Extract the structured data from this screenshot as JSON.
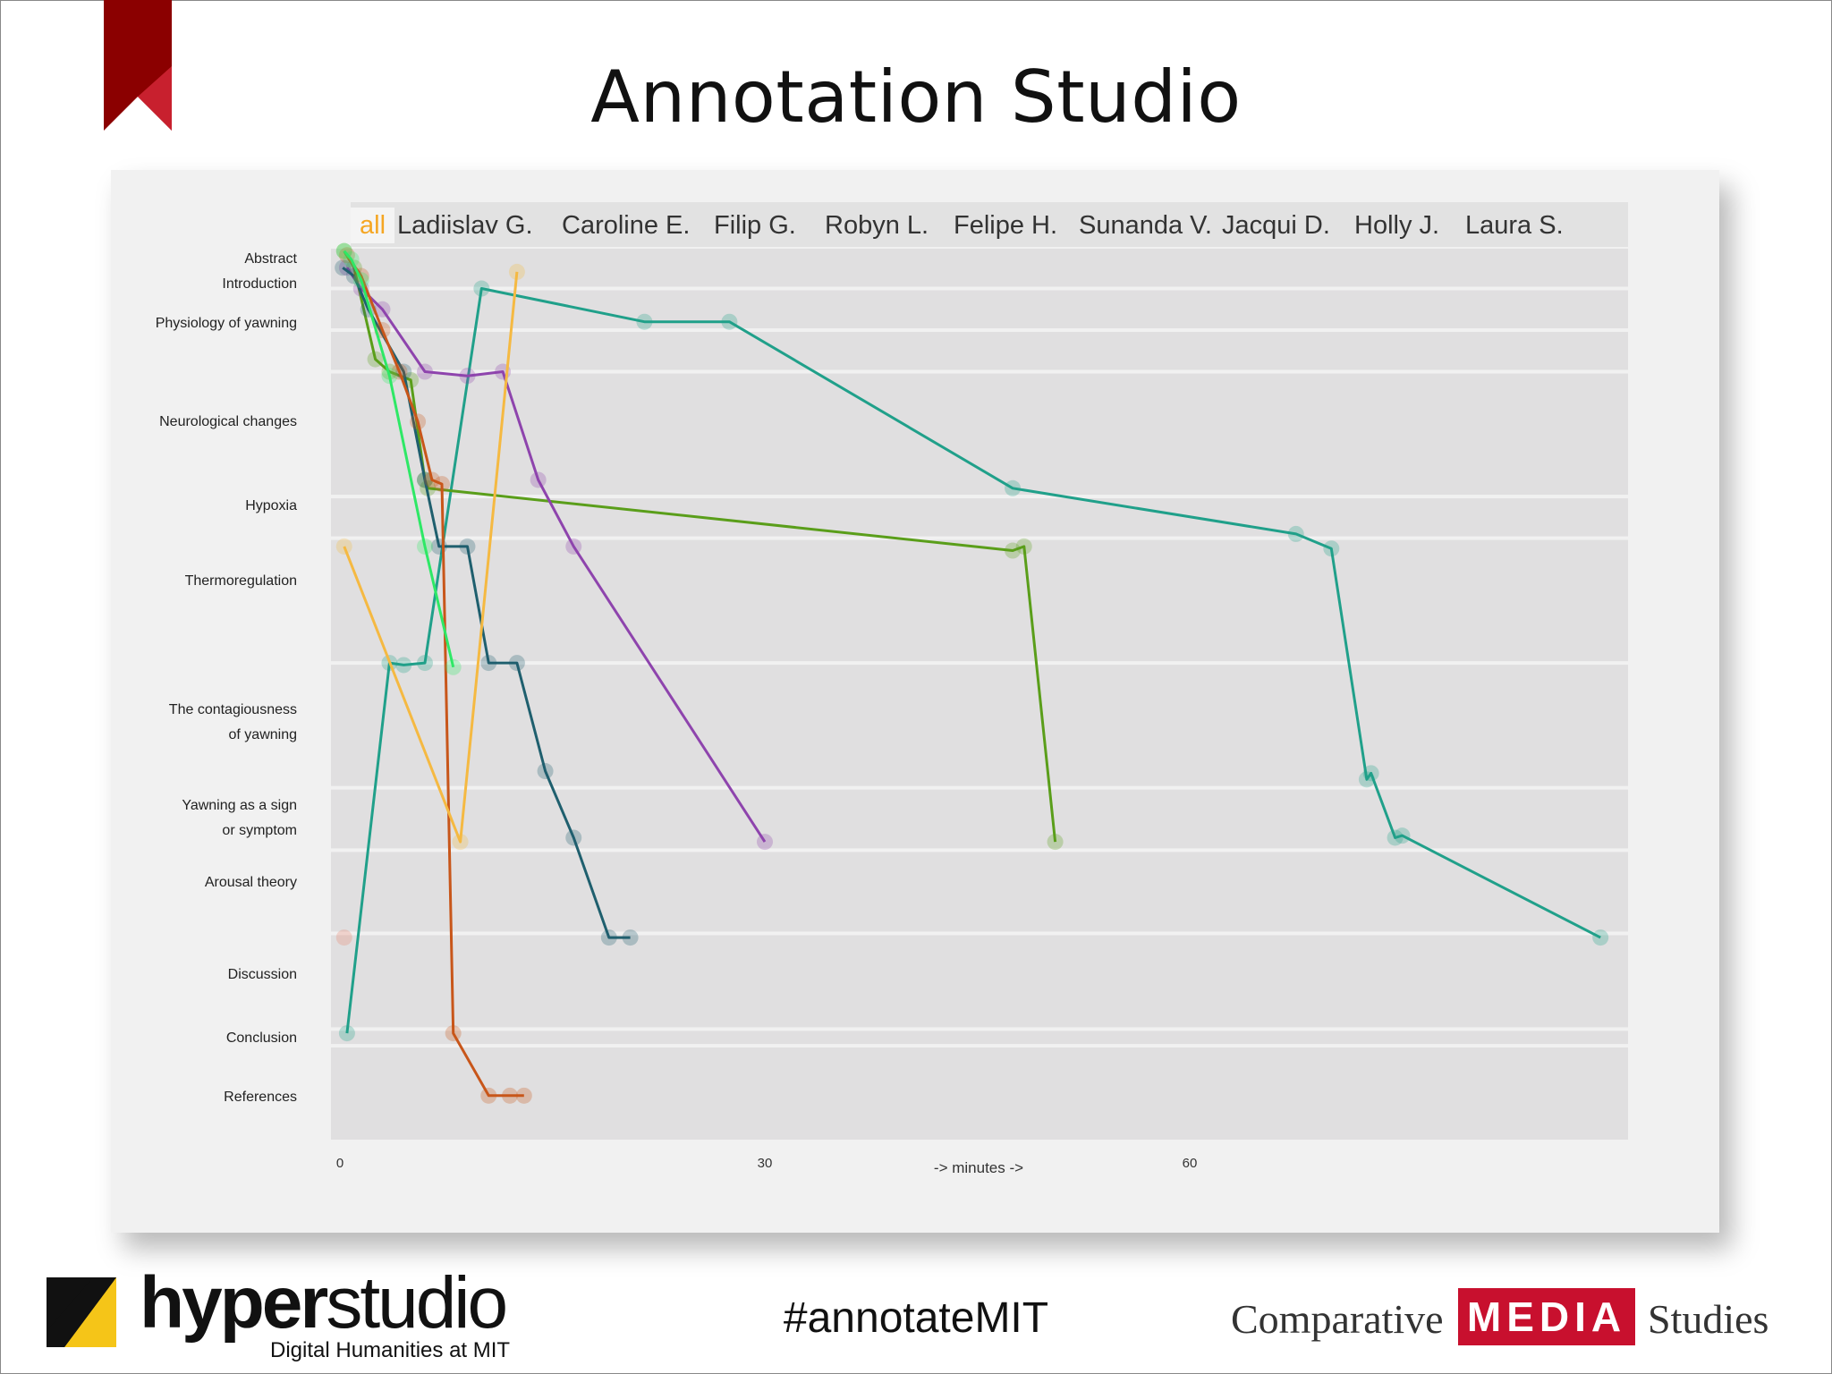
{
  "slide": {
    "title": "Annotation Studio",
    "hashtag": "#annotateMIT"
  },
  "footer": {
    "hyperstudio_bold": "hyper",
    "hyperstudio_light": "studio",
    "hyperstudio_sub": "Digital Humanities at MIT",
    "cms_left": "Comparative",
    "cms_media": "MEDIA",
    "cms_right": "Studies"
  },
  "colors": {
    "ribbon": "#8b0000",
    "ribbon_accent": "#c8202e",
    "tab_active": "#f5a623",
    "row_bg": "#e0dfe0"
  },
  "chart_data": {
    "type": "line",
    "title": "",
    "xlabel": "-> minutes ->",
    "ylabel": "",
    "x_range": [
      0,
      90
    ],
    "x_ticks": [
      0,
      30,
      60
    ],
    "tabs": [
      "all",
      "Ladiislav  G.",
      "Caroline E.",
      "Filip G.",
      "Robyn L.",
      "Felipe H.",
      "Sunanda V.",
      "Jacqui D.",
      "Holly J.",
      "Laura  S."
    ],
    "active_tab": "all",
    "sections": [
      {
        "label": "Abstract",
        "start": 0,
        "end": 1
      },
      {
        "label": "Introduction",
        "start": 1,
        "end": 2
      },
      {
        "label": "Physiology of yawning",
        "start": 2,
        "end": 3
      },
      {
        "label": "Neurological changes",
        "start": 3,
        "end": 6
      },
      {
        "label": "Hypoxia",
        "start": 6,
        "end": 7
      },
      {
        "label": "Thermoregulation",
        "start": 7,
        "end": 10
      },
      {
        "label": "The contagiousness of yawning",
        "start": 10,
        "end": 13
      },
      {
        "label": "Yawning as a sign or symptom",
        "start": 13,
        "end": 14.5
      },
      {
        "label": "Arousal theory",
        "start": 14.5,
        "end": 16.5
      },
      {
        "label": "Discussion",
        "start": 16.5,
        "end": 18.8
      },
      {
        "label": "Conclusion",
        "start": 18.8,
        "end": 19.2
      },
      {
        "label": "References",
        "start": 19.2,
        "end": 21.5
      }
    ],
    "y_range": [
      0,
      21.5
    ],
    "series": [
      {
        "name": "teal",
        "color": "#20a08a",
        "points": [
          [
            0.5,
            18.9
          ],
          [
            3.5,
            10.0
          ],
          [
            4.5,
            10.05
          ],
          [
            6,
            10.0
          ],
          [
            10,
            1.0
          ],
          [
            21.5,
            1.8
          ],
          [
            27.5,
            1.8
          ],
          [
            47.5,
            5.8
          ],
          [
            67.5,
            6.9
          ],
          [
            70,
            7.25
          ],
          [
            72.5,
            12.8
          ],
          [
            72.8,
            12.65
          ],
          [
            74.5,
            14.2
          ],
          [
            75,
            14.15
          ],
          [
            89,
            16.6
          ]
        ]
      },
      {
        "name": "olive-green",
        "color": "#5a9e1a",
        "points": [
          [
            0.3,
            0.1
          ],
          [
            1,
            0.5
          ],
          [
            2.5,
            2.7
          ],
          [
            3.5,
            3.0
          ],
          [
            5,
            3.2
          ],
          [
            6,
            5.6
          ],
          [
            6.2,
            5.8
          ],
          [
            47.5,
            7.3
          ],
          [
            48.3,
            7.2
          ],
          [
            50.5,
            14.3
          ]
        ]
      },
      {
        "name": "purple",
        "color": "#8e44ad",
        "points": [
          [
            0.5,
            0.5
          ],
          [
            1.5,
            1.0
          ],
          [
            3,
            1.5
          ],
          [
            6,
            3.0
          ],
          [
            9,
            3.1
          ],
          [
            11.5,
            3.0
          ],
          [
            14,
            5.6
          ],
          [
            16.5,
            7.2
          ],
          [
            30,
            14.3
          ]
        ]
      },
      {
        "name": "dark-teal",
        "color": "#1f5f6e",
        "points": [
          [
            0.2,
            0.5
          ],
          [
            1,
            0.7
          ],
          [
            2,
            1.5
          ],
          [
            4.5,
            3.0
          ],
          [
            6,
            5.6
          ],
          [
            7,
            7.2
          ],
          [
            9,
            7.2
          ],
          [
            10.5,
            10.0
          ],
          [
            12.5,
            10.0
          ],
          [
            14.5,
            12.6
          ],
          [
            16.5,
            14.2
          ],
          [
            19,
            16.6
          ],
          [
            20.5,
            16.6
          ]
        ]
      },
      {
        "name": "orange-brown",
        "color": "#c8561a",
        "points": [
          [
            0.5,
            0.2
          ],
          [
            1.5,
            0.7
          ],
          [
            3,
            2.0
          ],
          [
            4.2,
            3.0
          ],
          [
            5.5,
            4.2
          ],
          [
            6.5,
            5.6
          ],
          [
            7.2,
            5.7
          ],
          [
            8,
            18.9
          ],
          [
            10.5,
            20.4
          ],
          [
            12,
            20.4
          ],
          [
            13,
            20.4
          ]
        ]
      },
      {
        "name": "bright-green",
        "color": "#2ee866",
        "points": [
          [
            0.3,
            0.1
          ],
          [
            0.8,
            0.3
          ],
          [
            1.5,
            0.8
          ],
          [
            3.5,
            3.1
          ],
          [
            6,
            7.2
          ],
          [
            8,
            10.1
          ]
        ]
      },
      {
        "name": "yellow",
        "color": "#f5b942",
        "points": [
          [
            0.3,
            7.2
          ],
          [
            8.5,
            14.3
          ],
          [
            12.5,
            0.6
          ]
        ]
      },
      {
        "name": "salmon",
        "color": "#e8806a",
        "points": [
          [
            0.3,
            16.6
          ]
        ]
      }
    ]
  }
}
